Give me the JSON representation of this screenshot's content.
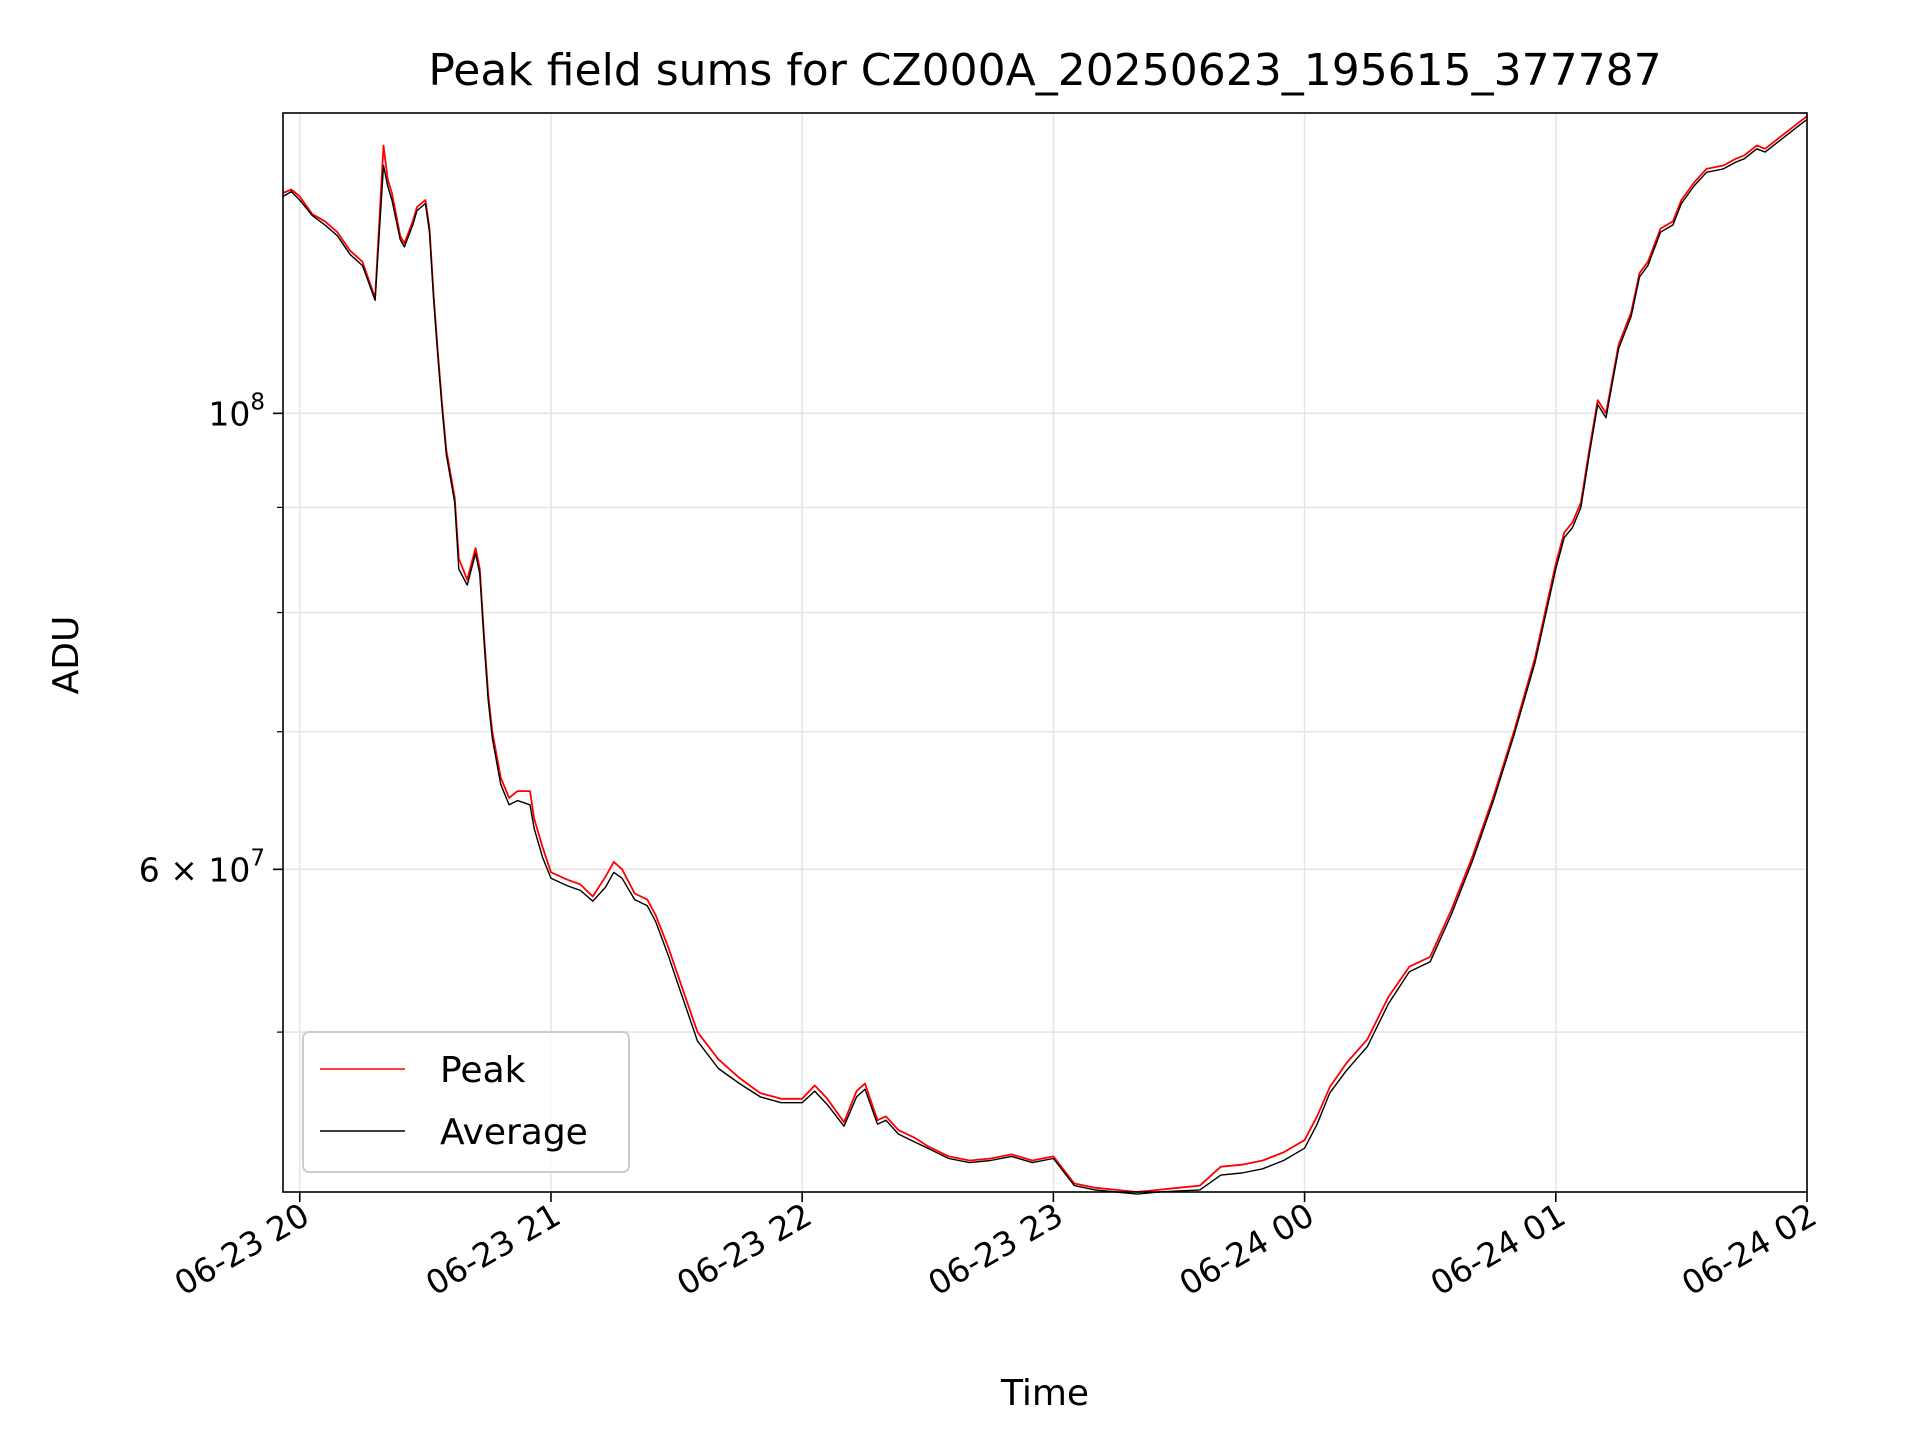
{
  "chart_data": {
    "type": "line",
    "title": "Peak field sums for CZ000A_20250623_195615_377787",
    "xlabel": "Time",
    "ylabel": "ADU",
    "x_scale": "time",
    "y_scale": "log",
    "xlim": [
      "2025-06-23 19:56",
      "2025-06-24 02:00"
    ],
    "ylim": [
      41800000,
      140000000
    ],
    "x_ticks": [
      {
        "value": "2025-06-23 20:00",
        "label": "06-23 20"
      },
      {
        "value": "2025-06-23 21:00",
        "label": "06-23 21"
      },
      {
        "value": "2025-06-23 22:00",
        "label": "06-23 22"
      },
      {
        "value": "2025-06-23 23:00",
        "label": "06-23 23"
      },
      {
        "value": "2025-06-24 00:00",
        "label": "06-24 00"
      },
      {
        "value": "2025-06-24 01:00",
        "label": "06-24 01"
      },
      {
        "value": "2025-06-24 02:00",
        "label": "06-24 02"
      }
    ],
    "y_major_ticks": [
      {
        "value": 100000000,
        "label_base": "10",
        "label_exp": "8"
      },
      {
        "value": 60000000,
        "label_base": "6 × 10",
        "label_exp": "7"
      }
    ],
    "y_minor_ticks": [
      50000000,
      70000000,
      80000000,
      90000000
    ],
    "grid": true,
    "legend": {
      "position": "lower-left"
    },
    "series": [
      {
        "name": "Peak",
        "color": "#ff0000",
        "x": [
          "2025-06-23 19:56",
          "2025-06-23 19:58",
          "2025-06-23 20:00",
          "2025-06-23 20:03",
          "2025-06-23 20:06",
          "2025-06-23 20:09",
          "2025-06-23 20:12",
          "2025-06-23 20:15",
          "2025-06-23 20:18",
          "2025-06-23 20:20",
          "2025-06-23 20:21",
          "2025-06-23 20:22",
          "2025-06-23 20:24",
          "2025-06-23 20:25",
          "2025-06-23 20:27",
          "2025-06-23 20:28",
          "2025-06-23 20:30",
          "2025-06-23 20:31",
          "2025-06-23 20:32",
          "2025-06-23 20:33",
          "2025-06-23 20:34",
          "2025-06-23 20:35",
          "2025-06-23 20:37",
          "2025-06-23 20:38",
          "2025-06-23 20:40",
          "2025-06-23 20:42",
          "2025-06-23 20:43",
          "2025-06-23 20:44",
          "2025-06-23 20:45",
          "2025-06-23 20:46",
          "2025-06-23 20:48",
          "2025-06-23 20:50",
          "2025-06-23 20:52",
          "2025-06-23 20:55",
          "2025-06-23 20:56",
          "2025-06-23 20:58",
          "2025-06-23 21:00",
          "2025-06-23 21:04",
          "2025-06-23 21:07",
          "2025-06-23 21:10",
          "2025-06-23 21:13",
          "2025-06-23 21:15",
          "2025-06-23 21:17",
          "2025-06-23 21:20",
          "2025-06-23 21:23",
          "2025-06-23 21:25",
          "2025-06-23 21:28",
          "2025-06-23 21:30",
          "2025-06-23 21:35",
          "2025-06-23 21:40",
          "2025-06-23 21:45",
          "2025-06-23 21:50",
          "2025-06-23 21:55",
          "2025-06-23 22:00",
          "2025-06-23 22:03",
          "2025-06-23 22:06",
          "2025-06-23 22:10",
          "2025-06-23 22:13",
          "2025-06-23 22:15",
          "2025-06-23 22:18",
          "2025-06-23 22:20",
          "2025-06-23 22:23",
          "2025-06-23 22:27",
          "2025-06-23 22:30",
          "2025-06-23 22:35",
          "2025-06-23 22:40",
          "2025-06-23 22:45",
          "2025-06-23 22:50",
          "2025-06-23 22:55",
          "2025-06-23 23:00",
          "2025-06-23 23:05",
          "2025-06-23 23:10",
          "2025-06-23 23:15",
          "2025-06-23 23:20",
          "2025-06-23 23:25",
          "2025-06-23 23:30",
          "2025-06-23 23:35",
          "2025-06-23 23:40",
          "2025-06-23 23:45",
          "2025-06-23 23:50",
          "2025-06-23 23:55",
          "2025-06-24 00:00",
          "2025-06-24 00:03",
          "2025-06-24 00:06",
          "2025-06-24 00:10",
          "2025-06-24 00:15",
          "2025-06-24 00:20",
          "2025-06-24 00:25",
          "2025-06-24 00:30",
          "2025-06-24 00:35",
          "2025-06-24 00:40",
          "2025-06-24 00:45",
          "2025-06-24 00:50",
          "2025-06-24 00:55",
          "2025-06-24 01:00",
          "2025-06-24 01:02",
          "2025-06-24 01:04",
          "2025-06-24 01:06",
          "2025-06-24 01:08",
          "2025-06-24 01:10",
          "2025-06-24 01:12",
          "2025-06-24 01:15",
          "2025-06-24 01:18",
          "2025-06-24 01:20",
          "2025-06-24 01:22",
          "2025-06-24 01:25",
          "2025-06-24 01:28",
          "2025-06-24 01:30",
          "2025-06-24 01:33",
          "2025-06-24 01:36",
          "2025-06-24 01:40",
          "2025-06-24 01:43",
          "2025-06-24 01:45",
          "2025-06-24 01:48",
          "2025-06-24 01:50",
          "2025-06-24 01:53",
          "2025-06-24 01:56",
          "2025-06-24 02:00"
        ],
        "y": [
          128000000,
          128500000,
          127500000,
          125000000,
          124000000,
          122500000,
          120000000,
          118500000,
          113800000,
          135000000,
          130000000,
          128000000,
          122000000,
          121000000,
          124000000,
          126000000,
          127000000,
          123000000,
          114000000,
          107000000,
          101000000,
          96000000,
          91000000,
          85000000,
          83000000,
          86000000,
          84000000,
          78000000,
          73000000,
          70000000,
          66500000,
          65000000,
          65500000,
          65500000,
          63500000,
          61500000,
          59800000,
          59300000,
          59000000,
          58200000,
          59500000,
          60500000,
          60000000,
          58400000,
          58000000,
          57000000,
          55000000,
          53500000,
          50000000,
          48500000,
          47500000,
          46700000,
          46400000,
          46400000,
          47100000,
          46400000,
          45200000,
          46800000,
          47200000,
          45300000,
          45500000,
          44800000,
          44400000,
          44000000,
          43500000,
          43300000,
          43400000,
          43600000,
          43300000,
          43500000,
          42200000,
          42000000,
          41900000,
          41800000,
          41900000,
          42000000,
          42100000,
          43000000,
          43100000,
          43300000,
          43700000,
          44300000,
          45500000,
          47000000,
          48300000,
          49600000,
          52000000,
          53800000,
          54400000,
          57300000,
          60800000,
          65000000,
          70000000,
          76000000,
          84500000,
          87500000,
          88500000,
          90500000,
          96000000,
          101500000,
          100000000,
          108000000,
          112000000,
          117000000,
          118500000,
          123000000,
          124000000,
          127000000,
          129500000,
          131500000,
          132000000,
          133000000,
          133500000,
          135000000,
          134500000,
          136000000,
          137500000,
          139500000
        ]
      },
      {
        "name": "Average",
        "color": "#000000",
        "x": [
          "2025-06-23 19:56",
          "2025-06-23 19:58",
          "2025-06-23 20:00",
          "2025-06-23 20:03",
          "2025-06-23 20:06",
          "2025-06-23 20:09",
          "2025-06-23 20:12",
          "2025-06-23 20:15",
          "2025-06-23 20:18",
          "2025-06-23 20:20",
          "2025-06-23 20:21",
          "2025-06-23 20:22",
          "2025-06-23 20:24",
          "2025-06-23 20:25",
          "2025-06-23 20:27",
          "2025-06-23 20:28",
          "2025-06-23 20:30",
          "2025-06-23 20:31",
          "2025-06-23 20:32",
          "2025-06-23 20:33",
          "2025-06-23 20:34",
          "2025-06-23 20:35",
          "2025-06-23 20:37",
          "2025-06-23 20:38",
          "2025-06-23 20:40",
          "2025-06-23 20:42",
          "2025-06-23 20:43",
          "2025-06-23 20:44",
          "2025-06-23 20:45",
          "2025-06-23 20:46",
          "2025-06-23 20:48",
          "2025-06-23 20:50",
          "2025-06-23 20:52",
          "2025-06-23 20:55",
          "2025-06-23 20:56",
          "2025-06-23 20:58",
          "2025-06-23 21:00",
          "2025-06-23 21:04",
          "2025-06-23 21:07",
          "2025-06-23 21:10",
          "2025-06-23 21:13",
          "2025-06-23 21:15",
          "2025-06-23 21:17",
          "2025-06-23 21:20",
          "2025-06-23 21:23",
          "2025-06-23 21:25",
          "2025-06-23 21:28",
          "2025-06-23 21:30",
          "2025-06-23 21:35",
          "2025-06-23 21:40",
          "2025-06-23 21:45",
          "2025-06-23 21:50",
          "2025-06-23 21:55",
          "2025-06-23 22:00",
          "2025-06-23 22:03",
          "2025-06-23 22:06",
          "2025-06-23 22:10",
          "2025-06-23 22:13",
          "2025-06-23 22:15",
          "2025-06-23 22:18",
          "2025-06-23 22:20",
          "2025-06-23 22:23",
          "2025-06-23 22:27",
          "2025-06-23 22:30",
          "2025-06-23 22:35",
          "2025-06-23 22:40",
          "2025-06-23 22:45",
          "2025-06-23 22:50",
          "2025-06-23 22:55",
          "2025-06-23 23:00",
          "2025-06-23 23:05",
          "2025-06-23 23:10",
          "2025-06-23 23:15",
          "2025-06-23 23:20",
          "2025-06-23 23:25",
          "2025-06-23 23:30",
          "2025-06-23 23:35",
          "2025-06-23 23:40",
          "2025-06-23 23:45",
          "2025-06-23 23:50",
          "2025-06-23 23:55",
          "2025-06-24 00:00",
          "2025-06-24 00:03",
          "2025-06-24 00:06",
          "2025-06-24 00:10",
          "2025-06-24 00:15",
          "2025-06-24 00:20",
          "2025-06-24 00:25",
          "2025-06-24 00:30",
          "2025-06-24 00:35",
          "2025-06-24 00:40",
          "2025-06-24 00:45",
          "2025-06-24 00:50",
          "2025-06-24 00:55",
          "2025-06-24 01:00",
          "2025-06-24 01:02",
          "2025-06-24 01:04",
          "2025-06-24 01:06",
          "2025-06-24 01:08",
          "2025-06-24 01:10",
          "2025-06-24 01:12",
          "2025-06-24 01:15",
          "2025-06-24 01:18",
          "2025-06-24 01:20",
          "2025-06-24 01:22",
          "2025-06-24 01:25",
          "2025-06-24 01:28",
          "2025-06-24 01:30",
          "2025-06-24 01:33",
          "2025-06-24 01:36",
          "2025-06-24 01:40",
          "2025-06-24 01:43",
          "2025-06-24 01:45",
          "2025-06-24 01:48",
          "2025-06-24 01:50",
          "2025-06-24 01:53",
          "2025-06-24 01:56",
          "2025-06-24 02:00"
        ],
        "y": [
          127500000,
          128200000,
          127000000,
          124800000,
          123500000,
          122000000,
          119500000,
          118000000,
          113500000,
          132000000,
          129000000,
          127000000,
          121500000,
          120500000,
          123500000,
          125500000,
          126500000,
          122500000,
          113500000,
          106500000,
          100500000,
          95500000,
          90500000,
          84000000,
          82500000,
          85500000,
          83500000,
          77500000,
          72500000,
          69500000,
          66000000,
          64500000,
          64800000,
          64500000,
          62800000,
          60800000,
          59400000,
          58900000,
          58600000,
          57900000,
          58800000,
          59800000,
          59400000,
          58000000,
          57600000,
          56600000,
          54500000,
          53000000,
          49500000,
          48000000,
          47200000,
          46500000,
          46200000,
          46200000,
          46800000,
          46100000,
          45000000,
          46500000,
          46900000,
          45100000,
          45300000,
          44600000,
          44200000,
          43900000,
          43400000,
          43200000,
          43300000,
          43500000,
          43200000,
          43400000,
          42100000,
          41900000,
          41800000,
          41700000,
          41800000,
          41850000,
          41900000,
          42600000,
          42700000,
          42900000,
          43300000,
          43900000,
          45100000,
          46700000,
          47900000,
          49200000,
          51600000,
          53500000,
          54100000,
          57000000,
          60500000,
          64700000,
          69700000,
          75600000,
          84000000,
          87000000,
          88000000,
          90000000,
          95500000,
          101000000,
          99500000,
          107500000,
          111500000,
          116500000,
          118000000,
          122500000,
          123500000,
          126500000,
          129000000,
          131000000,
          131500000,
          132500000,
          133000000,
          134500000,
          134000000,
          135500000,
          137000000,
          139000000
        ]
      }
    ]
  }
}
